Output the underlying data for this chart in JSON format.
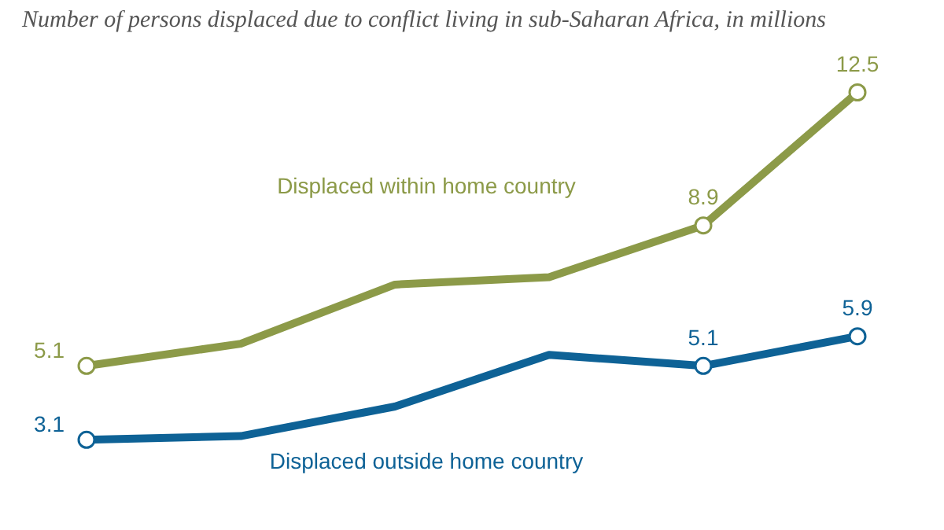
{
  "chart_data": {
    "type": "line",
    "subtitle": "Number of persons displaced due to conflict living in sub-Saharan Africa, in millions",
    "categories": [
      null,
      null,
      null,
      null,
      null,
      null
    ],
    "tick_labels": false,
    "legend": false,
    "marker": "circle",
    "line_style": "solid",
    "series": [
      {
        "name": "Displaced within home country",
        "color": "#8c9a48",
        "values": [
          5.1,
          5.7,
          7.3,
          7.5,
          8.9,
          12.5
        ],
        "value_labels": [
          "5.1",
          null,
          null,
          null,
          "8.9",
          "12.5"
        ]
      },
      {
        "name": "Displaced outside home country",
        "color": "#0e6296",
        "values": [
          3.1,
          3.2,
          4.0,
          5.4,
          5.1,
          5.9
        ],
        "value_labels": [
          "3.1",
          null,
          null,
          null,
          "5.1",
          "5.9"
        ]
      }
    ]
  }
}
